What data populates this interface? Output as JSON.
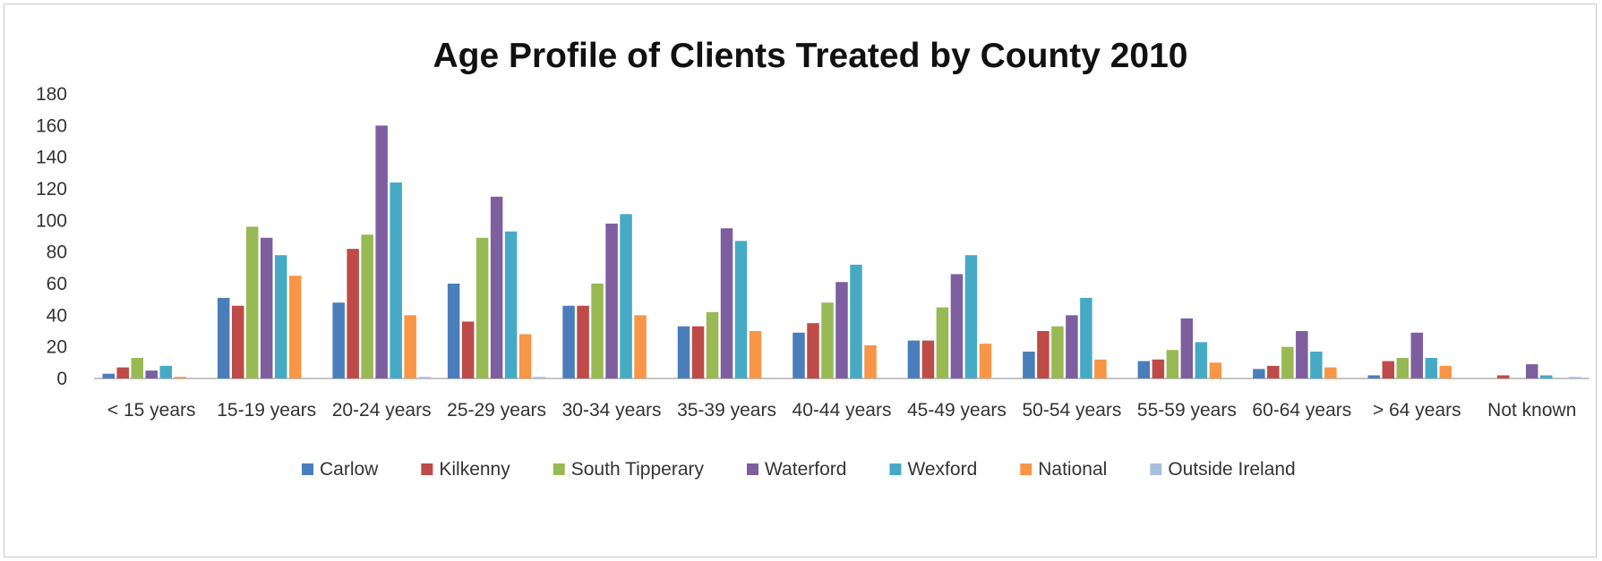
{
  "chart_data": {
    "type": "bar",
    "title": "Age Profile of Clients Treated by County 2010",
    "xlabel": "",
    "ylabel": "",
    "ylim": [
      0,
      180
    ],
    "yticks": [
      0,
      20,
      40,
      60,
      80,
      100,
      120,
      140,
      160,
      180
    ],
    "grid": false,
    "legend_position": "bottom",
    "categories": [
      "< 15 years",
      "15-19 years",
      "20-24 years",
      "25-29 years",
      "30-34 years",
      "35-39 years",
      "40-44 years",
      "45-49 years",
      "50-54 years",
      "55-59 years",
      "60-64 years",
      "> 64 years",
      "Not known"
    ],
    "series": [
      {
        "name": "Carlow",
        "color": "#4a7ebb",
        "values": [
          3,
          51,
          48,
          60,
          46,
          33,
          29,
          24,
          17,
          11,
          6,
          2,
          0
        ]
      },
      {
        "name": "Kilkenny",
        "color": "#be4b48",
        "values": [
          7,
          46,
          82,
          36,
          46,
          33,
          35,
          24,
          30,
          12,
          8,
          11,
          2
        ]
      },
      {
        "name": "South Tipperary",
        "color": "#98b954",
        "values": [
          13,
          96,
          91,
          89,
          60,
          42,
          48,
          45,
          33,
          18,
          20,
          13,
          0
        ]
      },
      {
        "name": "Waterford",
        "color": "#7d5fa0",
        "values": [
          5,
          89,
          160,
          115,
          98,
          95,
          61,
          66,
          40,
          38,
          30,
          29,
          9
        ]
      },
      {
        "name": "Wexford",
        "color": "#46aac5",
        "values": [
          8,
          78,
          124,
          93,
          104,
          87,
          72,
          78,
          51,
          23,
          17,
          13,
          2
        ]
      },
      {
        "name": "National",
        "color": "#f79646",
        "values": [
          1,
          65,
          40,
          28,
          40,
          30,
          21,
          22,
          12,
          10,
          7,
          8,
          0
        ]
      },
      {
        "name": "Outside Ireland",
        "color": "#a5bfdd",
        "values": [
          0,
          0,
          1,
          1,
          0,
          0,
          0,
          0,
          0,
          0,
          0,
          0,
          1
        ]
      }
    ]
  }
}
